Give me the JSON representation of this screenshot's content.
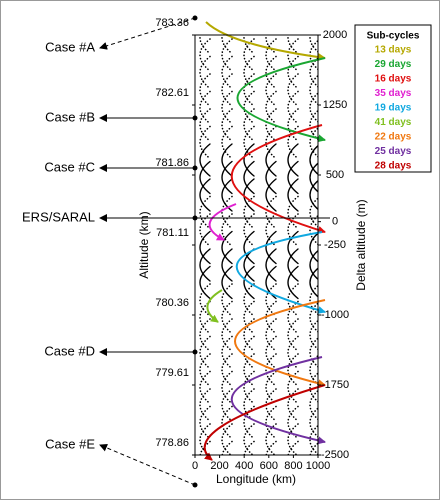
{
  "chart_data": {
    "type": "line",
    "xlabel": "Longitude (km)",
    "ylabel": "Altitude (km)",
    "y2label": "Delta altitude (m)",
    "xlim": [
      0,
      1000
    ],
    "xticks": [
      0,
      200,
      400,
      600,
      800,
      1000
    ],
    "ylim": [
      778.86,
      783.36
    ],
    "yticks": [
      783.36,
      782.61,
      781.86,
      781.11,
      780.36,
      779.61,
      778.86
    ],
    "y2lim": [
      -2500,
      2000
    ],
    "y2ticks": [
      2000,
      1250,
      500,
      0,
      -250,
      -1000,
      -1750,
      -2500
    ],
    "annotations": [
      "Case #A",
      "Case #B",
      "Case #C",
      "ERS/SARAL",
      "Case #D",
      "Case #E"
    ],
    "legend": {
      "title": "Sub-cycles",
      "entries": [
        {
          "name": "13 days",
          "color": "#b5a800"
        },
        {
          "name": "29 days",
          "color": "#1aa632"
        },
        {
          "name": "16 days",
          "color": "#e01010"
        },
        {
          "name": "35 days",
          "color": "#e020d0"
        },
        {
          "name": "19 days",
          "color": "#10a8e0"
        },
        {
          "name": "41 days",
          "color": "#80c020"
        },
        {
          "name": "22 days",
          "color": "#f07810"
        },
        {
          "name": "25 days",
          "color": "#7030a0"
        },
        {
          "name": "28 days",
          "color": "#c00000"
        }
      ]
    }
  }
}
